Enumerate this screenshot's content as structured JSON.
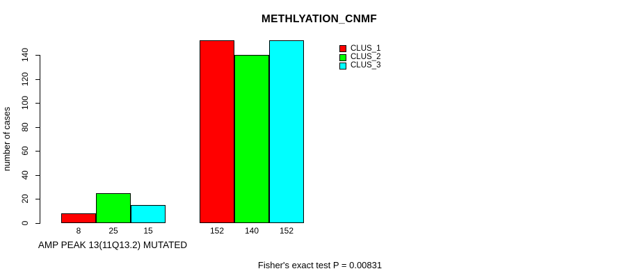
{
  "chart_data": {
    "type": "bar",
    "title": "METHLYATION_CNMF",
    "ylabel": "number of cases",
    "xlabel": "AMP PEAK 13(11Q13.2) MUTATED",
    "annotation": "Fisher's exact test P = 0.00831",
    "ylim": [
      0,
      140
    ],
    "yticks": [
      0,
      20,
      40,
      60,
      80,
      100,
      120,
      140
    ],
    "grid": false,
    "legend_position": "top-right",
    "categories": [
      "AMP PEAK 13(11Q13.2) MUTATED",
      ""
    ],
    "series": [
      {
        "name": "CLUS_1",
        "color": "#ff0000",
        "values": [
          8,
          152
        ]
      },
      {
        "name": "CLUS_2",
        "color": "#00ff00",
        "values": [
          25,
          140
        ]
      },
      {
        "name": "CLUS_3",
        "color": "#00ffff",
        "values": [
          15,
          152
        ]
      }
    ],
    "bar_value_labels": [
      [
        "8",
        "25",
        "15"
      ],
      [
        "152",
        "140",
        "152"
      ]
    ]
  },
  "colors": {
    "background": "#ffffff",
    "axis": "#000000",
    "text": "#000000"
  }
}
